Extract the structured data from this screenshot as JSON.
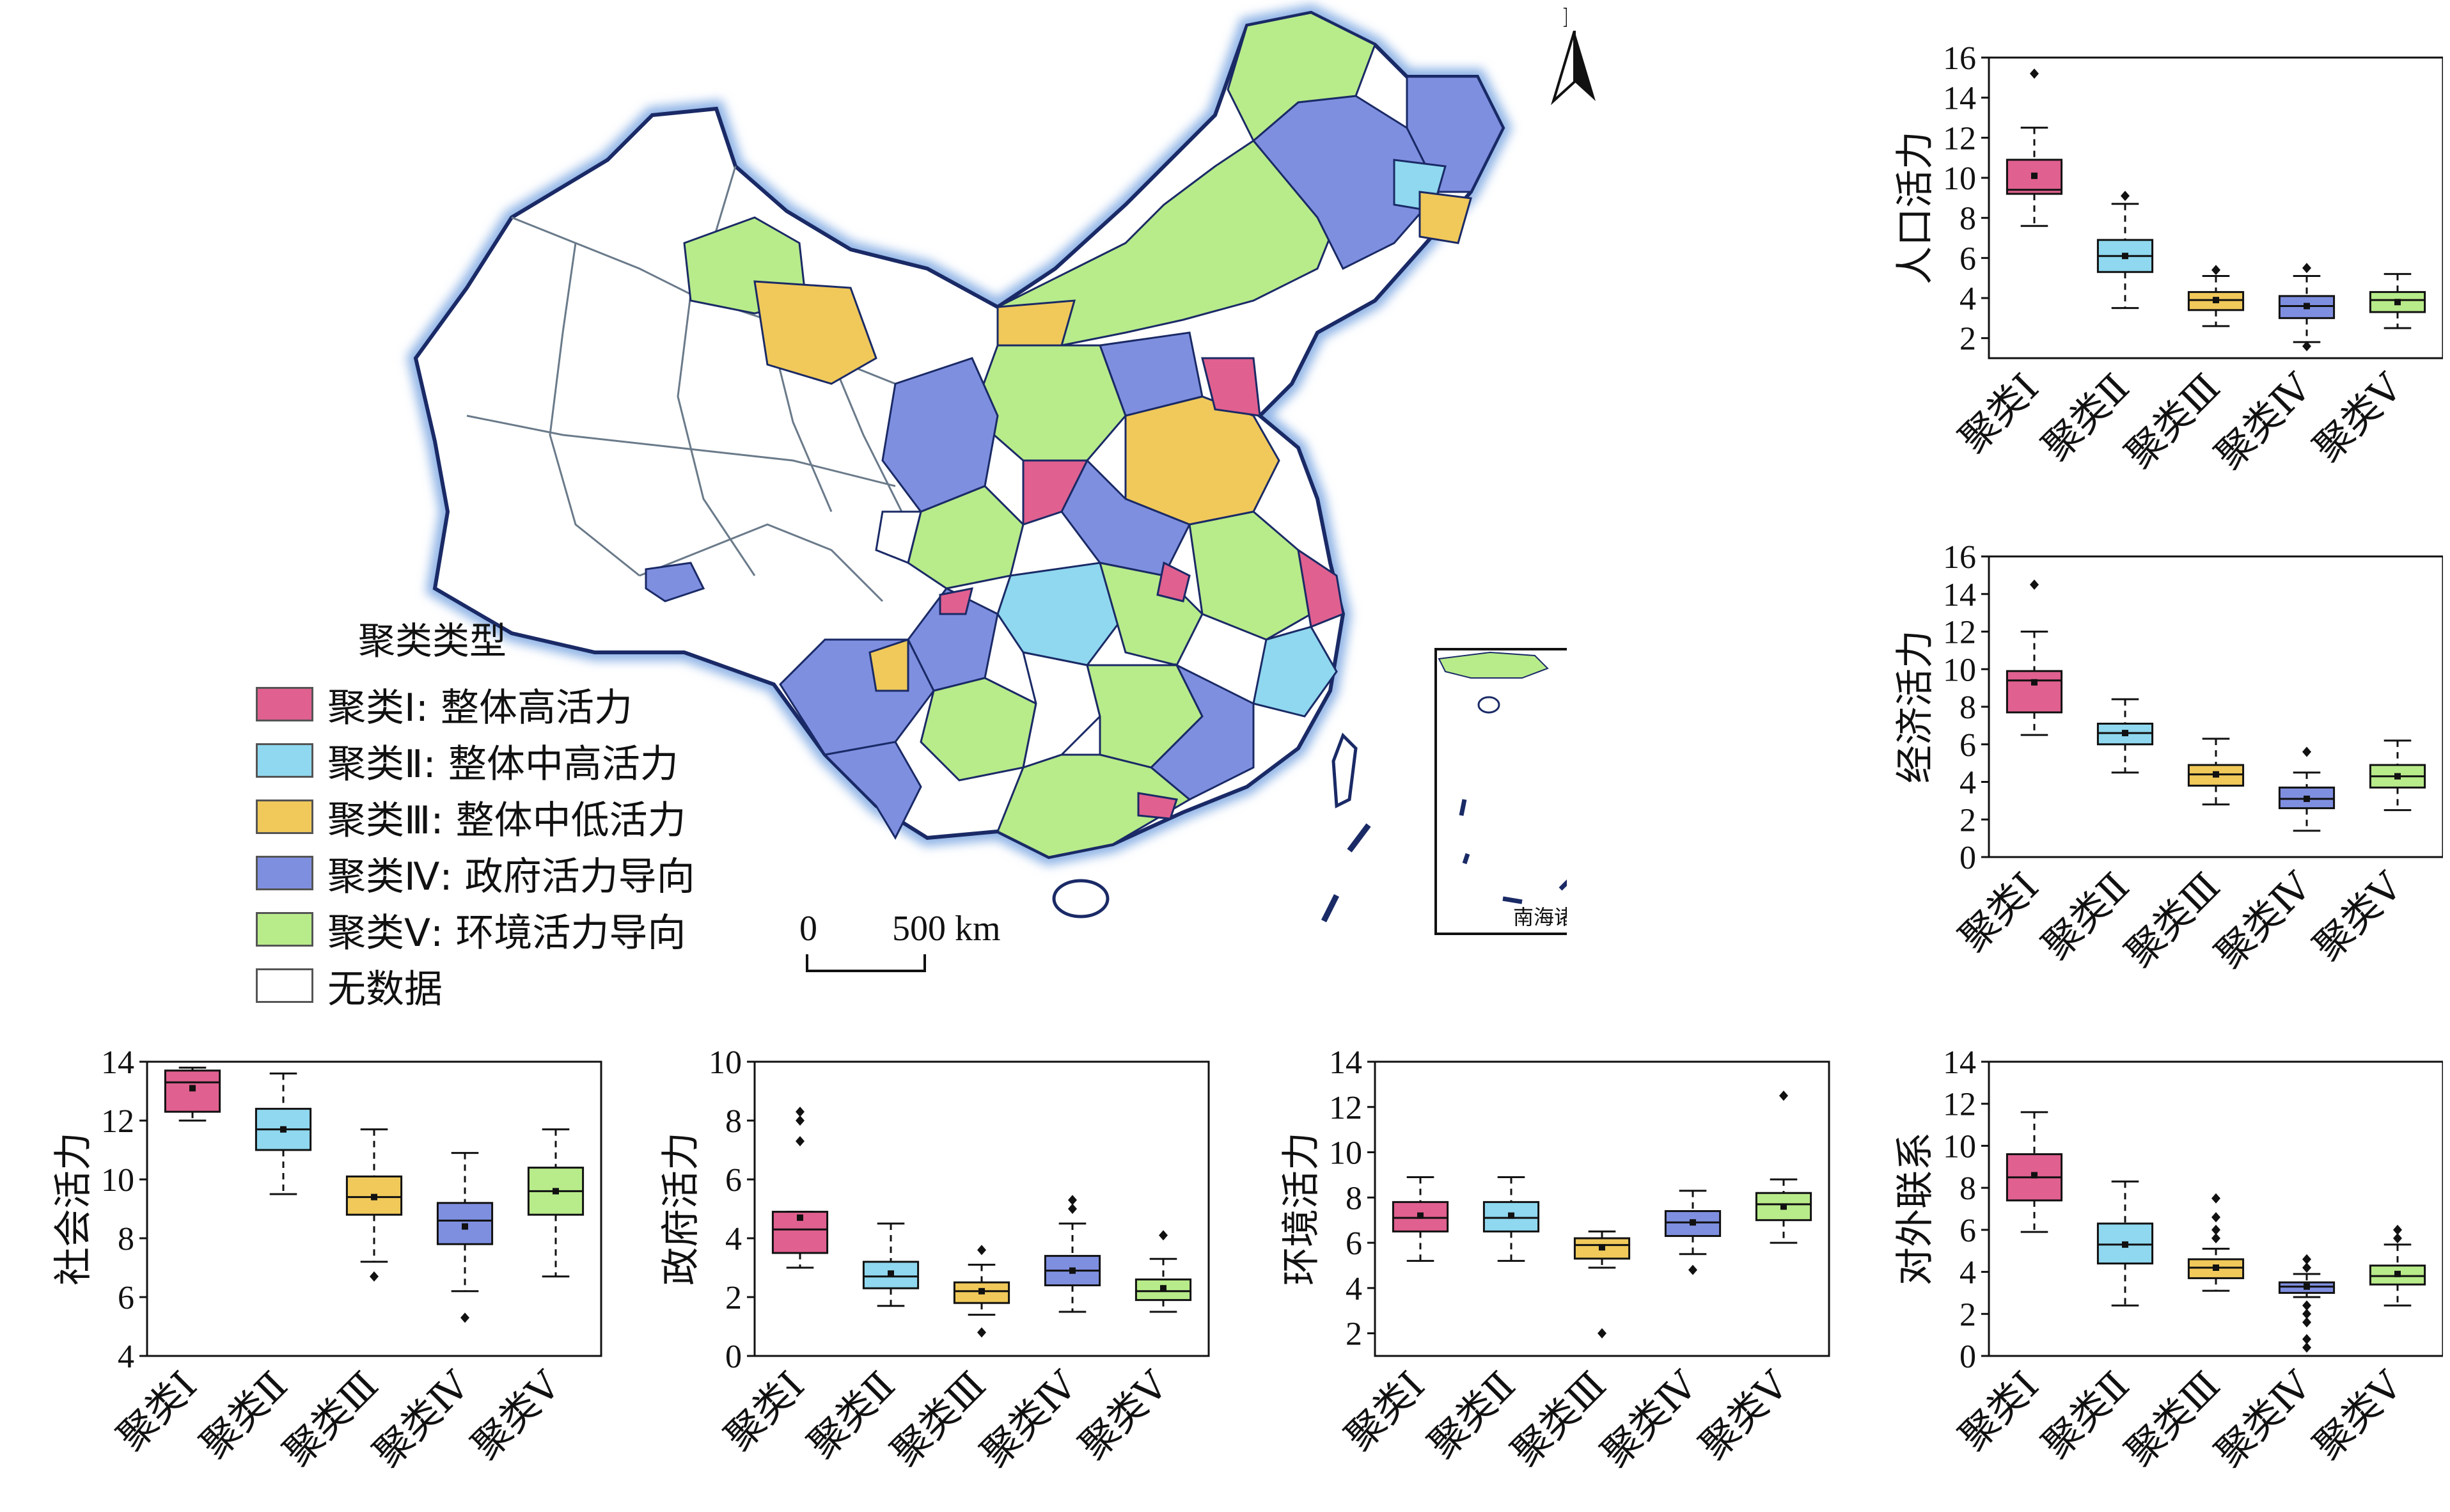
{
  "map": {
    "north_label": "N",
    "inset_label": "南海诸岛",
    "scale": {
      "start": "0",
      "end": "500 km"
    }
  },
  "legend": {
    "title": "聚类类型",
    "items": [
      {
        "label": "聚类Ⅰ: 整体高活力",
        "color": "#e0608f"
      },
      {
        "label": "聚类Ⅱ: 整体中高活力",
        "color": "#8fd8ef"
      },
      {
        "label": "聚类Ⅲ: 整体中低活力",
        "color": "#f0c95a"
      },
      {
        "label": "聚类Ⅳ: 政府活力导向",
        "color": "#7f8fe0"
      },
      {
        "label": "聚类Ⅴ: 环境活力导向",
        "color": "#b8eb8a"
      },
      {
        "label": "无数据",
        "color": "#ffffff"
      }
    ]
  },
  "chart_data": [
    {
      "type": "box",
      "ylabel": "人口活力",
      "ylim": [
        1,
        16
      ],
      "yticks": [
        2,
        4,
        6,
        8,
        10,
        12,
        14,
        16
      ],
      "categories": [
        "聚类Ⅰ",
        "聚类Ⅱ",
        "聚类Ⅲ",
        "聚类Ⅳ",
        "聚类Ⅴ"
      ],
      "boxes": [
        {
          "min": 7.6,
          "q1": 9.2,
          "median": 9.4,
          "q3": 10.9,
          "max": 12.5,
          "mean": 10.1,
          "outliers": [
            15.2
          ]
        },
        {
          "min": 3.5,
          "q1": 5.3,
          "median": 6.1,
          "q3": 6.9,
          "max": 8.7,
          "mean": 6.1,
          "outliers": [
            9.1
          ]
        },
        {
          "min": 2.6,
          "q1": 3.4,
          "median": 3.9,
          "q3": 4.3,
          "max": 5.1,
          "mean": 3.9,
          "outliers": [
            5.4
          ]
        },
        {
          "min": 1.8,
          "q1": 3.0,
          "median": 3.6,
          "q3": 4.1,
          "max": 5.1,
          "mean": 3.6,
          "outliers": [
            1.6,
            5.5
          ]
        },
        {
          "min": 2.5,
          "q1": 3.3,
          "median": 3.9,
          "q3": 4.3,
          "max": 5.2,
          "mean": 3.8,
          "outliers": []
        }
      ]
    },
    {
      "type": "box",
      "ylabel": "经济活力",
      "ylim": [
        0,
        16
      ],
      "yticks": [
        0,
        2,
        4,
        6,
        8,
        10,
        12,
        14,
        16
      ],
      "categories": [
        "聚类Ⅰ",
        "聚类Ⅱ",
        "聚类Ⅲ",
        "聚类Ⅳ",
        "聚类Ⅴ"
      ],
      "boxes": [
        {
          "min": 6.5,
          "q1": 7.7,
          "median": 9.4,
          "q3": 9.9,
          "max": 12.0,
          "mean": 9.3,
          "outliers": [
            14.5
          ]
        },
        {
          "min": 4.5,
          "q1": 6.0,
          "median": 6.6,
          "q3": 7.1,
          "max": 8.4,
          "mean": 6.6,
          "outliers": []
        },
        {
          "min": 2.8,
          "q1": 3.8,
          "median": 4.4,
          "q3": 4.9,
          "max": 6.3,
          "mean": 4.4,
          "outliers": []
        },
        {
          "min": 1.4,
          "q1": 2.6,
          "median": 3.1,
          "q3": 3.7,
          "max": 4.5,
          "mean": 3.1,
          "outliers": [
            5.6
          ]
        },
        {
          "min": 2.5,
          "q1": 3.7,
          "median": 4.3,
          "q3": 4.9,
          "max": 6.2,
          "mean": 4.3,
          "outliers": []
        }
      ]
    },
    {
      "type": "box",
      "ylabel": "社会活力",
      "ylim": [
        4,
        14
      ],
      "yticks": [
        4,
        6,
        8,
        10,
        12,
        14
      ],
      "categories": [
        "聚类Ⅰ",
        "聚类Ⅱ",
        "聚类Ⅲ",
        "聚类Ⅳ",
        "聚类Ⅴ"
      ],
      "boxes": [
        {
          "min": 12.0,
          "q1": 12.3,
          "median": 13.3,
          "q3": 13.7,
          "max": 13.8,
          "mean": 13.1,
          "outliers": []
        },
        {
          "min": 9.5,
          "q1": 11.0,
          "median": 11.7,
          "q3": 12.4,
          "max": 13.6,
          "mean": 11.7,
          "outliers": []
        },
        {
          "min": 7.2,
          "q1": 8.8,
          "median": 9.4,
          "q3": 10.1,
          "max": 11.7,
          "mean": 9.4,
          "outliers": [
            6.7
          ]
        },
        {
          "min": 6.2,
          "q1": 7.8,
          "median": 8.6,
          "q3": 9.2,
          "max": 10.9,
          "mean": 8.4,
          "outliers": [
            5.3
          ]
        },
        {
          "min": 6.7,
          "q1": 8.8,
          "median": 9.6,
          "q3": 10.4,
          "max": 11.7,
          "mean": 9.6,
          "outliers": []
        }
      ]
    },
    {
      "type": "box",
      "ylabel": "政府活力",
      "ylim": [
        0,
        10
      ],
      "yticks": [
        0,
        2,
        4,
        6,
        8,
        10
      ],
      "categories": [
        "聚类Ⅰ",
        "聚类Ⅱ",
        "聚类Ⅲ",
        "聚类Ⅳ",
        "聚类Ⅴ"
      ],
      "boxes": [
        {
          "min": 3.0,
          "q1": 3.5,
          "median": 4.3,
          "q3": 4.9,
          "max": 4.9,
          "mean": 4.7,
          "outliers": [
            7.3,
            8.0,
            8.3
          ]
        },
        {
          "min": 1.7,
          "q1": 2.3,
          "median": 2.7,
          "q3": 3.2,
          "max": 4.5,
          "mean": 2.8,
          "outliers": []
        },
        {
          "min": 1.4,
          "q1": 1.8,
          "median": 2.2,
          "q3": 2.5,
          "max": 3.1,
          "mean": 2.2,
          "outliers": [
            0.8,
            3.6
          ]
        },
        {
          "min": 1.5,
          "q1": 2.4,
          "median": 2.9,
          "q3": 3.4,
          "max": 4.5,
          "mean": 2.9,
          "outliers": [
            5.0,
            5.3
          ]
        },
        {
          "min": 1.5,
          "q1": 1.9,
          "median": 2.2,
          "q3": 2.6,
          "max": 3.3,
          "mean": 2.3,
          "outliers": [
            4.1
          ]
        }
      ]
    },
    {
      "type": "box",
      "ylabel": "环境活力",
      "ylim": [
        1,
        14
      ],
      "yticks": [
        2,
        4,
        6,
        8,
        10,
        12,
        14
      ],
      "categories": [
        "聚类Ⅰ",
        "聚类Ⅱ",
        "聚类Ⅲ",
        "聚类Ⅳ",
        "聚类Ⅴ"
      ],
      "boxes": [
        {
          "min": 5.2,
          "q1": 6.5,
          "median": 7.1,
          "q3": 7.8,
          "max": 8.9,
          "mean": 7.2,
          "outliers": []
        },
        {
          "min": 5.2,
          "q1": 6.5,
          "median": 7.1,
          "q3": 7.8,
          "max": 8.9,
          "mean": 7.2,
          "outliers": []
        },
        {
          "min": 4.9,
          "q1": 5.3,
          "median": 5.9,
          "q3": 6.2,
          "max": 6.5,
          "mean": 5.8,
          "outliers": [
            2.0
          ]
        },
        {
          "min": 5.5,
          "q1": 6.3,
          "median": 6.9,
          "q3": 7.4,
          "max": 8.3,
          "mean": 6.9,
          "outliers": [
            4.8
          ]
        },
        {
          "min": 6.0,
          "q1": 7.0,
          "median": 7.7,
          "q3": 8.2,
          "max": 8.8,
          "mean": 7.6,
          "outliers": [
            12.5
          ]
        }
      ]
    },
    {
      "type": "box",
      "ylabel": "对外联系",
      "ylim": [
        0,
        14
      ],
      "yticks": [
        0,
        2,
        4,
        6,
        8,
        10,
        12,
        14
      ],
      "categories": [
        "聚类Ⅰ",
        "聚类Ⅱ",
        "聚类Ⅲ",
        "聚类Ⅳ",
        "聚类Ⅴ"
      ],
      "boxes": [
        {
          "min": 5.9,
          "q1": 7.4,
          "median": 8.5,
          "q3": 9.6,
          "max": 11.6,
          "mean": 8.6,
          "outliers": []
        },
        {
          "min": 2.4,
          "q1": 4.4,
          "median": 5.3,
          "q3": 6.3,
          "max": 8.3,
          "mean": 5.3,
          "outliers": []
        },
        {
          "min": 3.1,
          "q1": 3.7,
          "median": 4.2,
          "q3": 4.6,
          "max": 5.1,
          "mean": 4.2,
          "outliers": [
            5.6,
            6.0,
            6.6,
            7.5
          ]
        },
        {
          "min": 2.8,
          "q1": 3.0,
          "median": 3.3,
          "q3": 3.5,
          "max": 3.9,
          "mean": 3.3,
          "outliers": [
            0.4,
            0.8,
            1.6,
            2.0,
            2.4,
            4.2,
            4.6
          ]
        },
        {
          "min": 2.4,
          "q1": 3.4,
          "median": 3.8,
          "q3": 4.3,
          "max": 5.3,
          "mean": 3.9,
          "outliers": [
            5.6,
            6.0
          ]
        }
      ]
    }
  ]
}
